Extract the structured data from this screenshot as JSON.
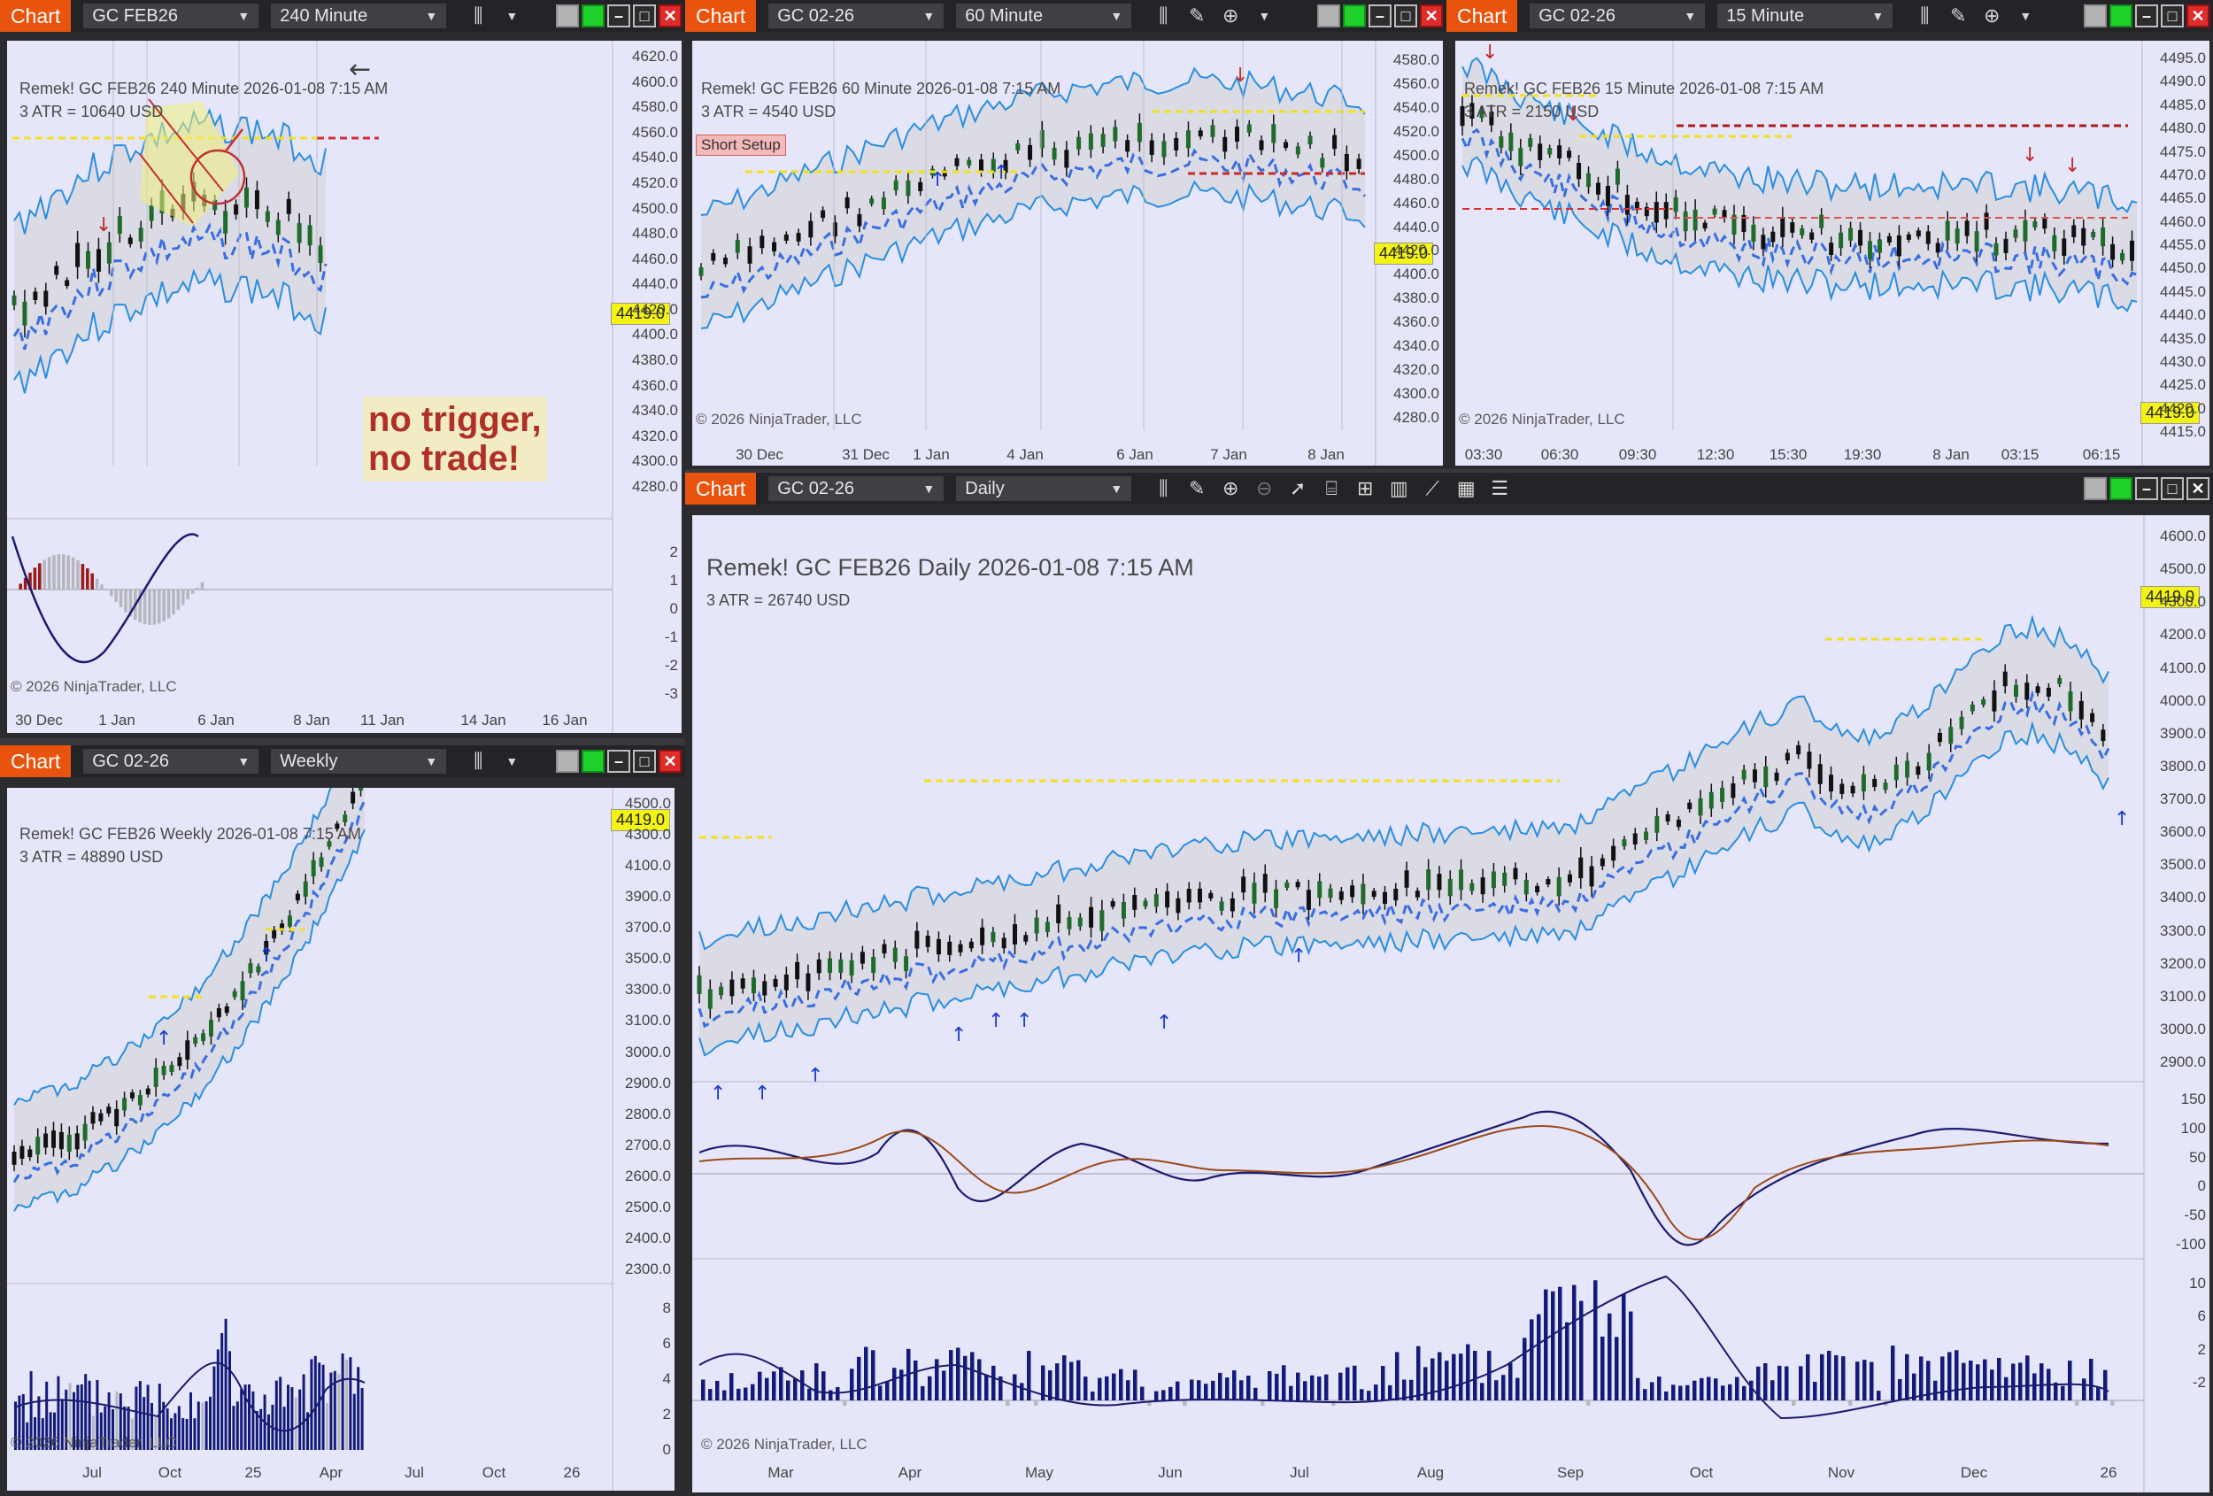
{
  "windows": {
    "w240": {
      "title": "Chart",
      "instrument": "GC FEB26",
      "interval": "240 Minute",
      "header": "Remek!  GC FEB26  240 Minute  2026-01-08 7:15 AM",
      "atr": "3 ATR = 10640 USD",
      "copyright": "© 2026 NinjaTrader, LLC",
      "price_tag": "4419.0",
      "note_line1": "no trigger,",
      "note_line2": "no trade!",
      "y_labels": [
        "4620.0",
        "4600.0",
        "4580.0",
        "4560.0",
        "4540.0",
        "4520.0",
        "4500.0",
        "4480.0",
        "4460.0",
        "4440.0",
        "4420.0",
        "4400.0",
        "4380.0",
        "4360.0",
        "4340.0",
        "4320.0",
        "4300.0",
        "4280.0"
      ],
      "osc_labels": [
        "2",
        "1",
        "0",
        "-1",
        "-2",
        "-3"
      ],
      "x_labels": [
        "30 Dec",
        "1 Jan",
        "6 Jan",
        "8 Jan",
        "11 Jan",
        "14 Jan",
        "16 Jan"
      ]
    },
    "w60": {
      "title": "Chart",
      "instrument": "GC 02-26",
      "interval": "60 Minute",
      "header": "Remek!  GC FEB26  60 Minute  2026-01-08 7:15 AM",
      "atr": "3 ATR = 4540 USD",
      "setup_label": "Short Setup",
      "copyright": "© 2026 NinjaTrader, LLC",
      "price_tag": "4419.0",
      "y_labels": [
        "4580.0",
        "4560.0",
        "4540.0",
        "4520.0",
        "4500.0",
        "4480.0",
        "4460.0",
        "4440.0",
        "4420.0",
        "4400.0",
        "4380.0",
        "4360.0",
        "4340.0",
        "4320.0",
        "4300.0",
        "4280.0"
      ],
      "x_labels": [
        "30 Dec",
        "31 Dec",
        "1 Jan",
        "4 Jan",
        "6 Jan",
        "7 Jan",
        "8 Jan"
      ]
    },
    "w15": {
      "title": "Chart",
      "instrument": "GC 02-26",
      "interval": "15 Minute",
      "header": "Remek!  GC FEB26  15 Minute  2026-01-08 7:15 AM",
      "atr": "3 ATR = 2150 USD",
      "copyright": "© 2026 NinjaTrader, LLC",
      "price_tag": "4419.0",
      "y_labels": [
        "4495.0",
        "4490.0",
        "4485.0",
        "4480.0",
        "4475.0",
        "4470.0",
        "4465.0",
        "4460.0",
        "4455.0",
        "4450.0",
        "4445.0",
        "4440.0",
        "4435.0",
        "4430.0",
        "4425.0",
        "4420.0",
        "4415.0"
      ],
      "x_labels": [
        "03:30",
        "06:30",
        "09:30",
        "12:30",
        "15:30",
        "19:30",
        "8 Jan",
        "03:15",
        "06:15"
      ]
    },
    "wWeekly": {
      "title": "Chart",
      "instrument": "GC 02-26",
      "interval": "Weekly",
      "header": "Remek!  GC FEB26  Weekly  2026-01-08 7:15 AM",
      "atr": "3 ATR = 48890 USD",
      "copyright": "© 2026 NinjaTrader, LLC",
      "price_tag": "4419.0",
      "y_labels": [
        "4500.0",
        "4300.0",
        "4100.0",
        "3900.0",
        "3700.0",
        "3500.0",
        "3300.0",
        "3100.0",
        "3000.0",
        "2900.0",
        "2800.0",
        "2700.0",
        "2600.0",
        "2500.0",
        "2400.0",
        "2300.0"
      ],
      "vol_labels": [
        "8",
        "6",
        "4",
        "2",
        "0"
      ],
      "x_labels": [
        "Jul",
        "Oct",
        "25",
        "Apr",
        "Jul",
        "Oct",
        "26"
      ]
    },
    "wDaily": {
      "title": "Chart",
      "instrument": "GC 02-26",
      "interval": "Daily",
      "header": "Remek!  GC FEB26  Daily  2026-01-08 7:15 AM",
      "atr": "3 ATR = 26740 USD",
      "copyright": "© 2026 NinjaTrader, LLC",
      "price_tag": "4419.0",
      "y_labels": [
        "4600.0",
        "4500.0",
        "4300.0",
        "4200.0",
        "4100.0",
        "4000.0",
        "3900.0",
        "3800.0",
        "3700.0",
        "3600.0",
        "3500.0",
        "3400.0",
        "3300.0",
        "3200.0",
        "3100.0",
        "3000.0",
        "2900.0"
      ],
      "osc_labels": [
        "150",
        "100",
        "50",
        "0",
        "-50",
        "-100"
      ],
      "hist_labels": [
        "10",
        "6",
        "2",
        "-2"
      ],
      "x_labels": [
        "Mar",
        "Apr",
        "May",
        "Jun",
        "Jul",
        "Aug",
        "Sep",
        "Oct",
        "Nov",
        "Dec",
        "26"
      ]
    }
  },
  "icons": [
    "bar-style-icon",
    "chevron-down-icon",
    "pencil-icon",
    "zoom-in-icon",
    "zoom-out-icon",
    "pointer-icon",
    "data-box-icon",
    "properties-icon",
    "indicators-icon",
    "strategies-icon",
    "list-icon"
  ]
}
